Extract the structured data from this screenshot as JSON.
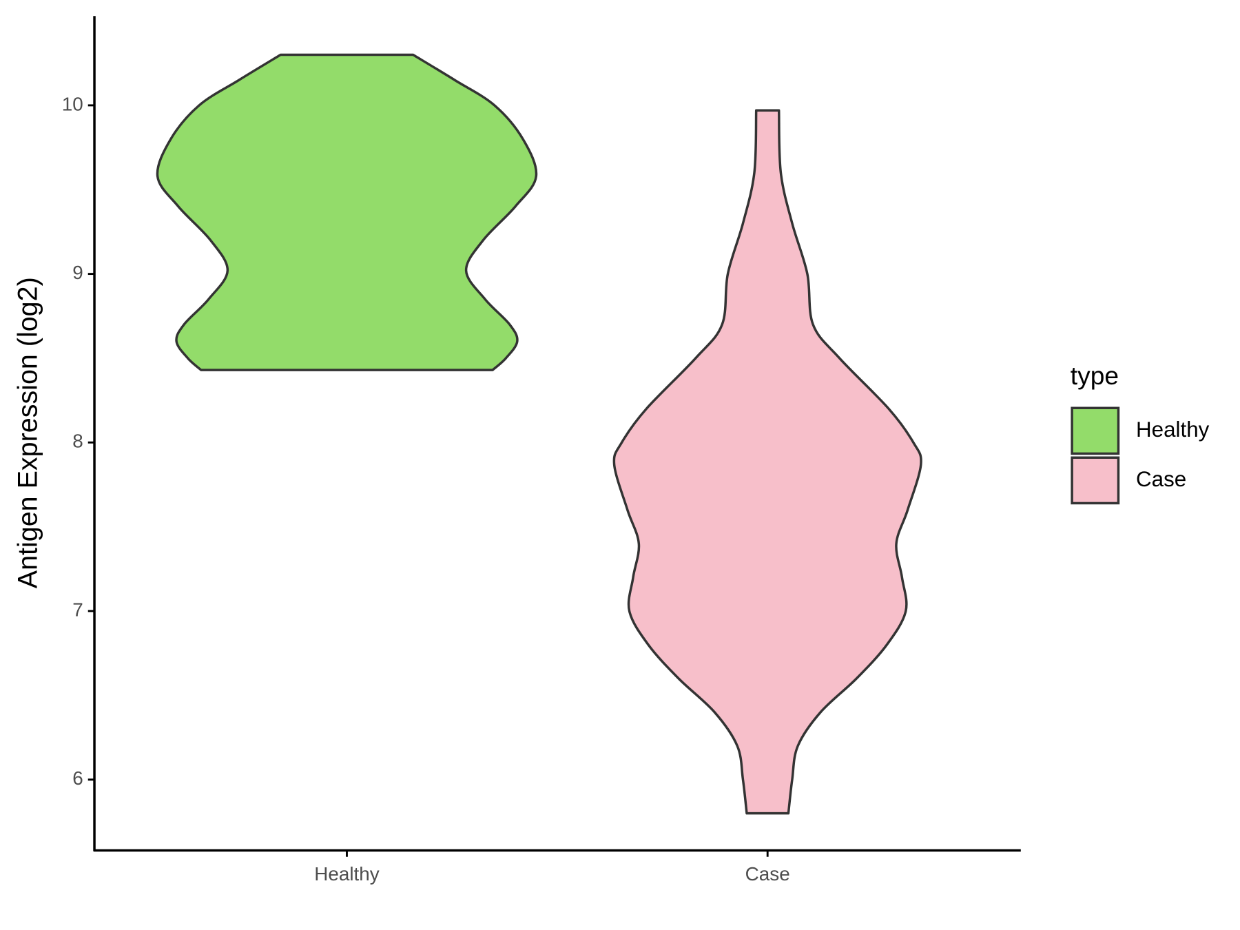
{
  "chart_data": {
    "type": "violin",
    "y_label": "Antigen Expression (log2)",
    "categories": [
      "Healthy",
      "Case"
    ],
    "legend_title": "type",
    "legend": "right",
    "ylim": [
      5.58,
      10.53
    ],
    "yticks": [
      6,
      7,
      8,
      9,
      10
    ],
    "series": [
      {
        "name": "Healthy",
        "color": "#93dc6a",
        "y": [
          10.3,
          10.15,
          10.0,
          9.8,
          9.58,
          9.4,
          9.2,
          9.02,
          8.85,
          8.7,
          8.6,
          8.5,
          8.43
        ],
        "density": [
          0.35,
          0.57,
          0.78,
          0.93,
          1.0,
          0.89,
          0.72,
          0.63,
          0.73,
          0.86,
          0.9,
          0.84,
          0.77
        ]
      },
      {
        "name": "Case",
        "color": "#f7bfca",
        "y": [
          9.97,
          9.6,
          9.3,
          9.0,
          8.7,
          8.5,
          8.2,
          8.0,
          7.87,
          7.6,
          7.4,
          7.2,
          7.0,
          6.8,
          6.6,
          6.4,
          6.2,
          6.0,
          5.8
        ],
        "density": [
          0.06,
          0.07,
          0.13,
          0.21,
          0.24,
          0.38,
          0.64,
          0.77,
          0.81,
          0.74,
          0.68,
          0.71,
          0.73,
          0.63,
          0.47,
          0.28,
          0.16,
          0.13,
          0.11
        ]
      }
    ]
  }
}
